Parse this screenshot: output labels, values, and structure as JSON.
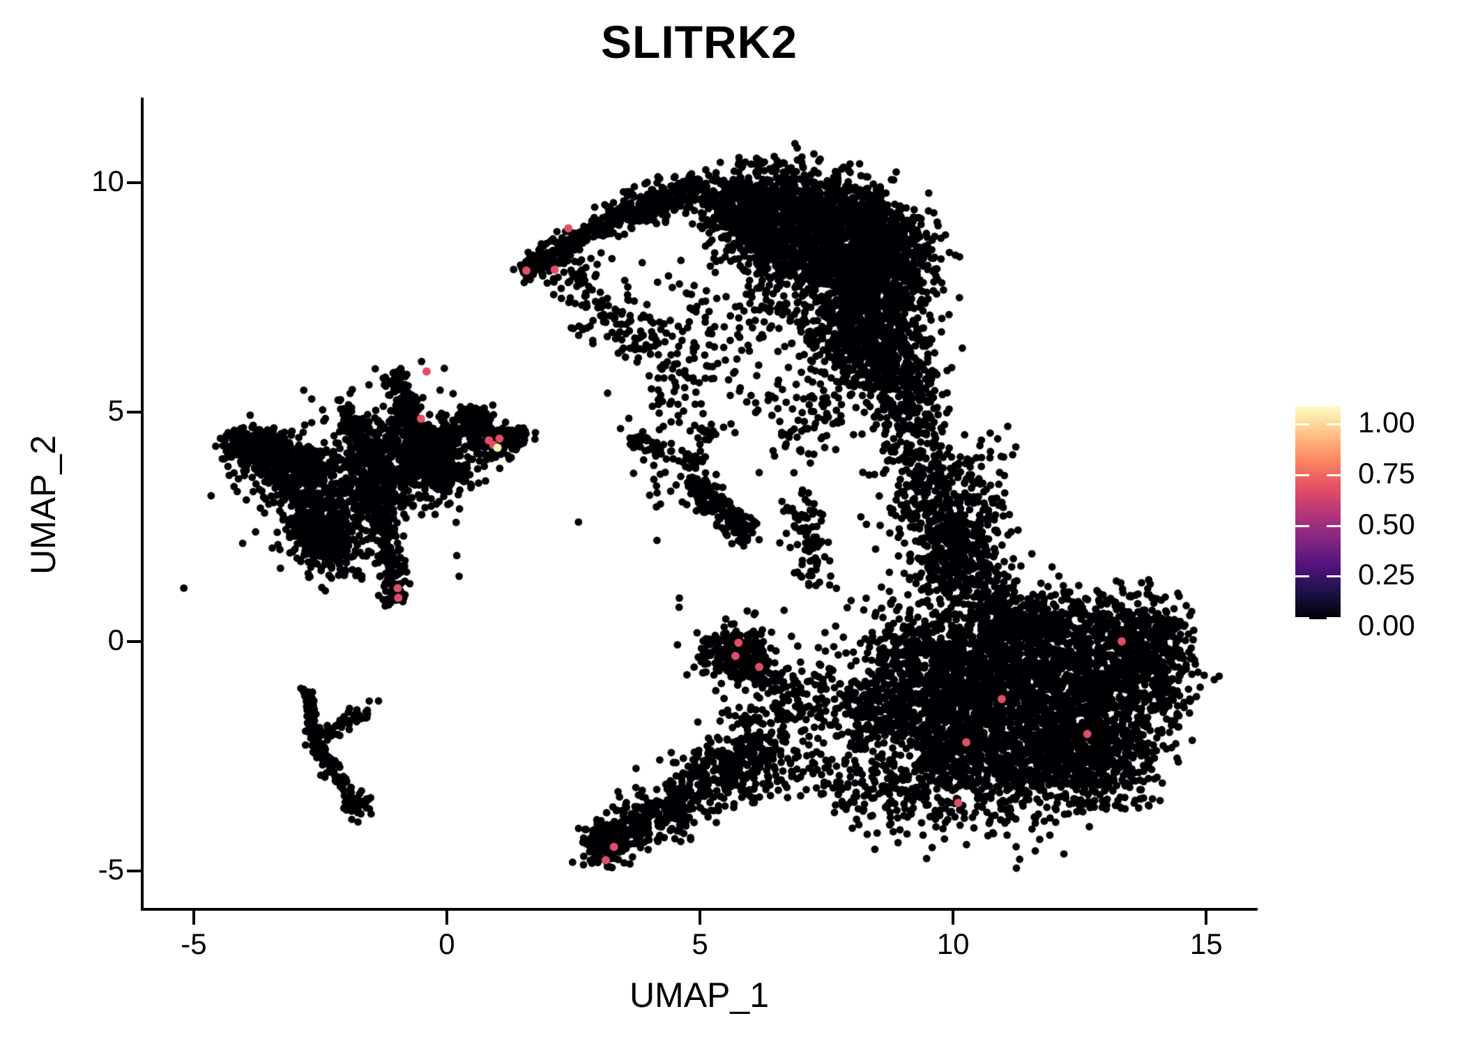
{
  "figure": {
    "title": "SLITRK2"
  },
  "chart_data": {
    "type": "scatter",
    "title": "SLITRK2",
    "xlabel": "UMAP_1",
    "ylabel": "UMAP_2",
    "xlim": [
      -5.99,
      15.96
    ],
    "ylim": [
      -5.81,
      11.85
    ],
    "grid": false,
    "x_ticks": [
      {
        "label": "-5",
        "value": -5
      },
      {
        "label": "0",
        "value": 0
      },
      {
        "label": "5",
        "value": 5
      },
      {
        "label": "10",
        "value": 10
      },
      {
        "label": "15",
        "value": 15
      }
    ],
    "y_ticks": [
      {
        "label": "10",
        "value": 10
      },
      {
        "label": "5",
        "value": 5
      },
      {
        "label": "0",
        "value": 0
      },
      {
        "label": "-5",
        "value": -5
      }
    ],
    "legend": {
      "position": "right",
      "range": [
        0,
        1
      ],
      "ticks": [
        {
          "label": "1.00",
          "value": 1.0
        },
        {
          "label": "0.75",
          "value": 0.75
        },
        {
          "label": "0.50",
          "value": 0.5
        },
        {
          "label": "0.25",
          "value": 0.25
        },
        {
          "label": "0.00",
          "value": 0.0
        }
      ]
    },
    "colormap": {
      "name": "magma",
      "stops": [
        [
          0.0,
          "#000004"
        ],
        [
          0.125,
          "#1d1147"
        ],
        [
          0.25,
          "#51127c"
        ],
        [
          0.375,
          "#822681"
        ],
        [
          0.5,
          "#b63679"
        ],
        [
          0.625,
          "#e65164"
        ],
        [
          0.75,
          "#fb8861"
        ],
        [
          0.875,
          "#fec287"
        ],
        [
          1.0,
          "#fcfdbf"
        ]
      ]
    },
    "point_radius": 5.4,
    "base_expression_value": 0.0,
    "seed": 42,
    "clusters": [
      [
        "b",
        6.25,
        9.55,
        0.55,
        0.45,
        330
      ],
      [
        "b",
        7.25,
        9.4,
        0.6,
        0.5,
        380
      ],
      [
        "b",
        8.2,
        9.0,
        0.5,
        0.5,
        380
      ],
      [
        "b",
        8.8,
        8.3,
        0.45,
        0.55,
        350
      ],
      [
        "b",
        8.5,
        7.4,
        0.5,
        0.6,
        340
      ],
      [
        "b",
        7.9,
        6.6,
        0.5,
        0.45,
        240
      ],
      [
        "b",
        8.65,
        6.1,
        0.45,
        0.5,
        240
      ],
      [
        "b",
        7.0,
        8.55,
        0.55,
        0.5,
        300
      ],
      [
        "b",
        7.8,
        7.9,
        0.6,
        0.55,
        300
      ],
      [
        "b",
        5.9,
        8.95,
        0.4,
        0.35,
        150
      ],
      [
        "b",
        5.45,
        9.6,
        0.35,
        0.3,
        110
      ],
      [
        "s",
        1.62,
        8.1,
        3.2,
        9.15,
        0.16,
        200
      ],
      [
        "s",
        3.2,
        9.15,
        5.0,
        9.95,
        0.2,
        230
      ],
      [
        "b",
        1.68,
        8.18,
        0.14,
        0.12,
        40
      ],
      [
        "s",
        2.3,
        8.25,
        3.1,
        7.1,
        0.3,
        70
      ],
      [
        "s",
        3.0,
        7.0,
        4.3,
        6.5,
        0.35,
        70
      ],
      [
        "b",
        5.6,
        7.5,
        0.8,
        0.75,
        100
      ],
      [
        "b",
        4.7,
        6.1,
        0.5,
        0.5,
        45
      ],
      [
        "b",
        7.2,
        4.9,
        0.65,
        0.55,
        90
      ],
      [
        "b",
        5.2,
        5.4,
        0.7,
        0.6,
        50
      ],
      [
        "s",
        8.9,
        5.9,
        9.5,
        3.4,
        0.4,
        300
      ],
      [
        "s",
        9.4,
        3.4,
        10.3,
        1.2,
        0.5,
        300
      ],
      [
        "b",
        9.9,
        2.3,
        0.5,
        0.55,
        140
      ],
      [
        "b",
        10.5,
        1.7,
        0.45,
        0.6,
        110
      ],
      [
        "b",
        10.4,
        3.4,
        0.45,
        0.55,
        70
      ],
      [
        "s",
        6.95,
        3.2,
        7.35,
        1.3,
        0.22,
        80
      ],
      [
        "b",
        10.2,
        -0.9,
        0.8,
        0.8,
        300
      ],
      [
        "b",
        10.4,
        -2.2,
        0.8,
        0.8,
        300
      ],
      [
        "b",
        11.2,
        -1.5,
        0.85,
        0.8,
        330
      ],
      [
        "b",
        11.3,
        -2.8,
        0.8,
        0.7,
        290
      ],
      [
        "b",
        12.1,
        -2.2,
        0.8,
        0.75,
        300
      ],
      [
        "b",
        12.2,
        -1.0,
        0.8,
        0.8,
        320
      ],
      [
        "b",
        13.0,
        -1.7,
        0.75,
        0.7,
        280
      ],
      [
        "b",
        13.2,
        -0.6,
        0.7,
        0.65,
        260
      ],
      [
        "b",
        12.8,
        -2.8,
        0.6,
        0.5,
        200
      ],
      [
        "b",
        11.9,
        0.0,
        0.8,
        0.5,
        260
      ],
      [
        "b",
        10.9,
        0.1,
        0.7,
        0.5,
        220
      ],
      [
        "b",
        9.8,
        -1.8,
        0.75,
        0.8,
        230
      ],
      [
        "b",
        9.7,
        -0.5,
        0.6,
        0.7,
        200
      ],
      [
        "b",
        13.9,
        -0.7,
        0.5,
        0.6,
        170
      ],
      [
        "b",
        13.6,
        0.1,
        0.45,
        0.4,
        130
      ],
      [
        "b",
        14.25,
        0.1,
        0.3,
        0.35,
        70
      ],
      [
        "b",
        11.5,
        0.55,
        0.8,
        0.3,
        140
      ],
      [
        "s",
        9.0,
        0.6,
        9.7,
        -3.0,
        0.45,
        220
      ],
      [
        "s",
        6.6,
        -2.6,
        9.8,
        -3.9,
        0.4,
        170
      ],
      [
        "s",
        7.2,
        -0.9,
        8.4,
        -2.0,
        0.45,
        150
      ],
      [
        "b",
        8.6,
        -1.2,
        0.6,
        0.9,
        140
      ],
      [
        "b",
        3.12,
        -4.35,
        0.22,
        0.25,
        150
      ],
      [
        "s",
        3.3,
        -4.35,
        4.9,
        -3.3,
        0.3,
        280
      ],
      [
        "s",
        4.9,
        -3.3,
        6.4,
        -2.5,
        0.35,
        210
      ],
      [
        "s",
        5.2,
        -2.8,
        6.6,
        -1.5,
        0.3,
        140
      ],
      [
        "b",
        5.65,
        -0.3,
        0.3,
        0.25,
        200
      ],
      [
        "s",
        6.0,
        -0.55,
        6.85,
        -1.1,
        0.2,
        70
      ],
      [
        "b",
        5.7,
        -0.3,
        0.6,
        0.5,
        60
      ],
      [
        "s",
        4.85,
        3.5,
        5.9,
        2.35,
        0.16,
        170
      ],
      [
        "s",
        3.6,
        4.35,
        5.05,
        3.95,
        0.14,
        60
      ],
      [
        "b",
        5.15,
        4.55,
        0.1,
        0.15,
        18
      ],
      [
        "b",
        4.6,
        3.6,
        0.5,
        0.5,
        30
      ],
      [
        "b",
        -3.0,
        3.6,
        0.4,
        0.35,
        260
      ],
      [
        "b",
        -3.4,
        4.15,
        0.3,
        0.25,
        160
      ],
      [
        "b",
        -2.45,
        2.4,
        0.35,
        0.4,
        220
      ],
      [
        "b",
        -1.6,
        3.2,
        0.45,
        0.4,
        300
      ],
      [
        "b",
        -0.35,
        3.9,
        0.5,
        0.45,
        340
      ],
      [
        "b",
        -1.0,
        4.4,
        0.3,
        0.3,
        120
      ],
      [
        "b",
        0.3,
        4.6,
        0.3,
        0.25,
        110
      ],
      [
        "b",
        0.95,
        4.3,
        0.22,
        0.18,
        90
      ],
      [
        "s",
        -4.25,
        4.45,
        -3.6,
        3.95,
        0.18,
        110
      ],
      [
        "s",
        -4.3,
        4.1,
        -3.9,
        4.5,
        0.12,
        50
      ],
      [
        "s",
        -2.9,
        2.9,
        -2.1,
        1.75,
        0.22,
        150
      ],
      [
        "s",
        -2.0,
        5.15,
        -1.5,
        3.8,
        0.2,
        130
      ],
      [
        "s",
        -1.05,
        5.85,
        -0.55,
        4.55,
        0.14,
        110
      ],
      [
        "s",
        -0.55,
        4.55,
        -0.25,
        3.4,
        0.25,
        140
      ],
      [
        "s",
        0.4,
        5.0,
        1.0,
        4.35,
        0.18,
        90
      ],
      [
        "s",
        1.05,
        4.4,
        1.6,
        4.5,
        0.12,
        50
      ],
      [
        "s",
        -1.35,
        2.7,
        -1.0,
        1.15,
        0.13,
        130
      ],
      [
        "b",
        -1.02,
        1.05,
        0.1,
        0.12,
        50
      ],
      [
        "b",
        -2.2,
        3.4,
        1.1,
        0.95,
        150
      ],
      [
        "s",
        -2.78,
        -1.15,
        -2.58,
        -2.3,
        0.07,
        90
      ],
      [
        "s",
        -2.58,
        -2.3,
        -1.98,
        -3.25,
        0.09,
        70
      ],
      [
        "b",
        -1.75,
        -3.55,
        0.13,
        0.13,
        45
      ],
      [
        "s",
        -2.5,
        -2.1,
        -1.6,
        -1.55,
        0.09,
        55
      ],
      [
        "p",
        [
          [
            -0.5,
            6.1
          ],
          [
            -0.05,
            5.95
          ],
          [
            1.75,
            4.55
          ],
          [
            -1.35,
            -1.3
          ],
          [
            6.62,
            3.05
          ],
          [
            6.72,
            2.92
          ],
          [
            2.6,
            2.6
          ],
          [
            4.15,
            2.2
          ],
          [
            6.1,
            5.2
          ],
          [
            6.9,
            5.6
          ]
        ]
      ]
    ],
    "highlights": [
      {
        "x": -0.4,
        "y": 5.88,
        "v": 0.61
      },
      {
        "x": -0.51,
        "y": 4.85,
        "v": 0.61
      },
      {
        "x": 0.83,
        "y": 4.38,
        "v": 0.61
      },
      {
        "x": 0.92,
        "y": 4.28,
        "v": 0.61
      },
      {
        "x": 1.04,
        "y": 4.42,
        "v": 0.61
      },
      {
        "x": 1.0,
        "y": 4.22,
        "v": 0.97
      },
      {
        "x": -0.97,
        "y": 1.16,
        "v": 0.61
      },
      {
        "x": -0.96,
        "y": 0.95,
        "v": 0.61
      },
      {
        "x": 2.4,
        "y": 9.0,
        "v": 0.61
      },
      {
        "x": 1.57,
        "y": 8.08,
        "v": 0.61
      },
      {
        "x": 2.13,
        "y": 8.1,
        "v": 0.61
      },
      {
        "x": 5.76,
        "y": -0.03,
        "v": 0.61
      },
      {
        "x": 5.7,
        "y": -0.32,
        "v": 0.61
      },
      {
        "x": 6.17,
        "y": -0.56,
        "v": 0.61
      },
      {
        "x": 3.3,
        "y": -4.48,
        "v": 0.61
      },
      {
        "x": 3.14,
        "y": -4.77,
        "v": 0.61
      },
      {
        "x": 10.1,
        "y": -3.52,
        "v": 0.61
      },
      {
        "x": 10.26,
        "y": -2.2,
        "v": 0.61
      },
      {
        "x": 10.96,
        "y": -1.26,
        "v": 0.61
      },
      {
        "x": 12.65,
        "y": -2.02,
        "v": 0.61
      },
      {
        "x": 13.33,
        "y": 0.0,
        "v": 0.61
      }
    ]
  }
}
